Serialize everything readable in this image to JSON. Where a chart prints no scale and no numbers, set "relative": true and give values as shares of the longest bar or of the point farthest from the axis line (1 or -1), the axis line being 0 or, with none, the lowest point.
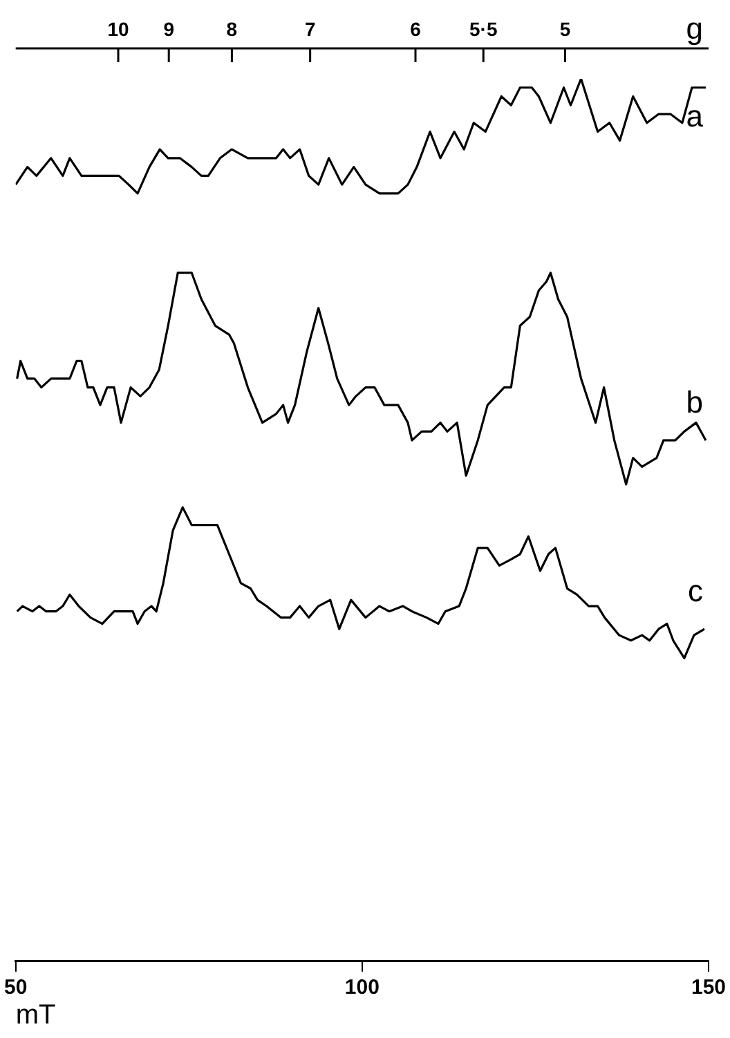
{
  "chart_data": {
    "type": "line",
    "relative": true,
    "xlabel": "mT",
    "xlim": [
      50,
      150
    ],
    "xticks": [
      50,
      100,
      150
    ],
    "annotations": [
      "g",
      {
        "text": "10",
        "x": 64.8
      },
      {
        "text": "9",
        "x": 72.1
      },
      {
        "text": "8",
        "x": 81.2
      },
      {
        "text": "7",
        "x": 92.5
      },
      {
        "text": "6",
        "x": 107.7
      },
      {
        "text": "5·5",
        "x": 117.5
      },
      {
        "text": "5",
        "x": 129.3
      }
    ],
    "grid": false,
    "legend": false,
    "marker": "none",
    "line_style": "solid",
    "series": [
      {
        "name": "a",
        "color": "#000000",
        "x": [
          50.0,
          51.7,
          53.0,
          55.1,
          56.8,
          57.8,
          59.5,
          60.8,
          62.5,
          64.9,
          66.3,
          67.6,
          69.3,
          70.8,
          72.0,
          73.7,
          75.4,
          76.8,
          77.8,
          79.5,
          81.2,
          83.5,
          86.2,
          87.6,
          88.6,
          89.6,
          91.0,
          92.3,
          93.7,
          95.2,
          97.1,
          98.8,
          100.5,
          102.5,
          103.9,
          105.2,
          106.6,
          107.9,
          109.8,
          111.3,
          113.3,
          114.7,
          116.1,
          117.8,
          120.1,
          121.5,
          122.8,
          124.5,
          125.5,
          127.2,
          129.1,
          130.1,
          131.6,
          134.0,
          135.7,
          137.2,
          139.1,
          141.1,
          142.8,
          144.5,
          146.2,
          147.6,
          149.6
        ],
        "values": [
          0.88,
          0.9,
          0.89,
          0.91,
          0.89,
          0.91,
          0.89,
          0.89,
          0.89,
          0.89,
          0.88,
          0.87,
          0.9,
          0.92,
          0.91,
          0.91,
          0.9,
          0.89,
          0.89,
          0.91,
          0.92,
          0.91,
          0.91,
          0.91,
          0.92,
          0.91,
          0.92,
          0.89,
          0.88,
          0.91,
          0.88,
          0.9,
          0.88,
          0.87,
          0.87,
          0.87,
          0.88,
          0.9,
          0.94,
          0.91,
          0.94,
          0.92,
          0.95,
          0.94,
          0.98,
          0.97,
          0.99,
          0.99,
          0.98,
          0.95,
          0.99,
          0.97,
          1.0,
          0.94,
          0.95,
          0.93,
          0.98,
          0.95,
          0.96,
          0.96,
          0.95,
          0.99,
          0.99
        ]
      },
      {
        "name": "b",
        "color": "#000000",
        "x": [
          50.2,
          50.7,
          51.7,
          52.7,
          53.7,
          55.1,
          56.1,
          57.1,
          57.8,
          58.8,
          59.5,
          60.4,
          61.2,
          62.2,
          63.2,
          64.2,
          65.2,
          66.6,
          68.0,
          69.3,
          70.7,
          72.0,
          73.4,
          75.4,
          76.8,
          78.8,
          80.8,
          81.5,
          83.5,
          85.6,
          87.6,
          88.6,
          89.3,
          90.3,
          92.0,
          93.7,
          95.1,
          96.4,
          98.1,
          99.1,
          100.5,
          101.8,
          103.2,
          105.2,
          106.6,
          107.2,
          108.6,
          110.0,
          111.3,
          112.3,
          113.7,
          115.0,
          116.7,
          118.1,
          120.5,
          121.5,
          122.8,
          124.2,
          125.5,
          126.6,
          127.2,
          128.3,
          129.6,
          131.6,
          133.7,
          134.9,
          136.4,
          138.1,
          139.1,
          140.4,
          142.5,
          143.5,
          145.2,
          146.5,
          148.2,
          149.6
        ],
        "values": [
          0.66,
          0.68,
          0.66,
          0.66,
          0.65,
          0.66,
          0.66,
          0.66,
          0.66,
          0.68,
          0.68,
          0.65,
          0.65,
          0.63,
          0.65,
          0.65,
          0.61,
          0.65,
          0.64,
          0.65,
          0.67,
          0.72,
          0.78,
          0.78,
          0.75,
          0.72,
          0.71,
          0.7,
          0.65,
          0.61,
          0.62,
          0.63,
          0.61,
          0.63,
          0.69,
          0.74,
          0.7,
          0.66,
          0.63,
          0.64,
          0.65,
          0.65,
          0.63,
          0.63,
          0.61,
          0.59,
          0.6,
          0.6,
          0.61,
          0.6,
          0.61,
          0.55,
          0.59,
          0.63,
          0.65,
          0.65,
          0.72,
          0.73,
          0.76,
          0.77,
          0.78,
          0.75,
          0.73,
          0.66,
          0.61,
          0.65,
          0.59,
          0.54,
          0.57,
          0.56,
          0.57,
          0.59,
          0.59,
          0.6,
          0.61,
          0.59
        ]
      },
      {
        "name": "c",
        "color": "#000000",
        "x": [
          50.2,
          51.0,
          52.4,
          53.4,
          54.4,
          55.8,
          56.8,
          57.8,
          59.1,
          60.8,
          62.5,
          64.2,
          65.9,
          66.9,
          67.6,
          68.6,
          69.6,
          70.3,
          71.3,
          72.7,
          74.1,
          75.4,
          76.8,
          78.1,
          79.1,
          80.8,
          82.5,
          83.9,
          84.9,
          86.2,
          88.3,
          89.6,
          91.0,
          92.3,
          93.7,
          95.4,
          96.7,
          98.4,
          100.5,
          102.5,
          103.9,
          105.9,
          107.2,
          109.3,
          111.0,
          112.0,
          114.0,
          115.0,
          116.7,
          118.1,
          119.8,
          121.5,
          122.8,
          124.0,
          125.7,
          126.9,
          127.9,
          129.6,
          131.0,
          132.7,
          134.0,
          135.0,
          137.1,
          138.8,
          140.4,
          141.5,
          142.8,
          144.0,
          144.9,
          146.5,
          147.9,
          149.4
        ],
        "values": [
          0.396,
          0.402,
          0.396,
          0.402,
          0.396,
          0.396,
          0.402,
          0.415,
          0.402,
          0.389,
          0.382,
          0.396,
          0.396,
          0.396,
          0.382,
          0.396,
          0.402,
          0.396,
          0.428,
          0.488,
          0.514,
          0.494,
          0.494,
          0.494,
          0.494,
          0.461,
          0.428,
          0.422,
          0.409,
          0.402,
          0.389,
          0.389,
          0.402,
          0.389,
          0.402,
          0.409,
          0.376,
          0.409,
          0.389,
          0.402,
          0.396,
          0.402,
          0.396,
          0.389,
          0.382,
          0.396,
          0.402,
          0.422,
          0.468,
          0.468,
          0.448,
          0.455,
          0.461,
          0.481,
          0.442,
          0.461,
          0.468,
          0.422,
          0.415,
          0.402,
          0.402,
          0.389,
          0.369,
          0.363,
          0.369,
          0.363,
          0.376,
          0.382,
          0.363,
          0.343,
          0.369,
          0.376
        ]
      }
    ]
  }
}
